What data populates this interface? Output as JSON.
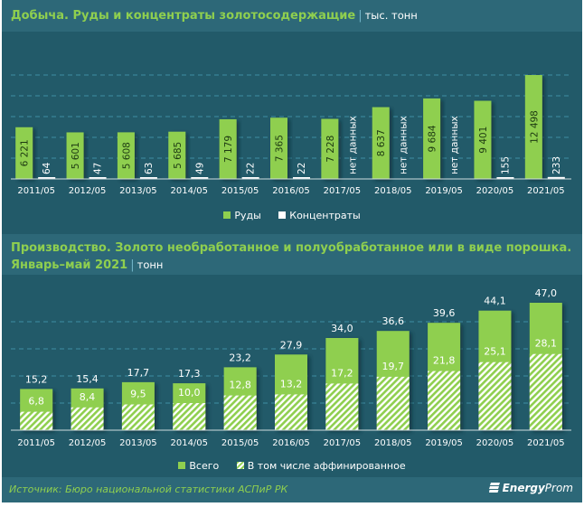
{
  "colors": {
    "green": "#8fcf4f",
    "white": "#ffffff",
    "background": "#225a69",
    "header_band": "#2d6878",
    "grid": "#3f8ea3"
  },
  "chart_data": [
    {
      "type": "bar",
      "title": "Добыча. Руды и концентраты золотосодержащие",
      "unit": "тыс. тонн",
      "categories": [
        "2011/05",
        "2012/05",
        "2013/05",
        "2014/05",
        "2015/05",
        "2016/05",
        "2017/05",
        "2018/05",
        "2019/05",
        "2020/05",
        "2021/05"
      ],
      "series": [
        {
          "name": "Руды",
          "color": "#8fcf4f",
          "values": [
            6221,
            5601,
            5608,
            5685,
            7179,
            7365,
            7228,
            8637,
            9684,
            9401,
            12498
          ],
          "labels": [
            "6 221",
            "5 601",
            "5 608",
            "5 685",
            "7 179",
            "7 365",
            "7 228",
            "8 637",
            "9 684",
            "9 401",
            "12 498"
          ]
        },
        {
          "name": "Концентраты",
          "color": "#ffffff",
          "values": [
            64,
            47,
            63,
            49,
            22,
            22,
            null,
            null,
            null,
            155,
            233
          ],
          "labels": [
            "64",
            "47",
            "63",
            "49",
            "22",
            "22",
            "нет данных",
            "нет данных",
            "нет данных",
            "155",
            "233"
          ]
        }
      ],
      "ylim": [
        0,
        15000
      ],
      "ytick_step": 2500,
      "grid": true,
      "legend": "bottom-center",
      "xlabel": "",
      "ylabel": ""
    },
    {
      "type": "bar",
      "title": "Производство. Золото необработанное и полуобработанное или в виде порошка.",
      "title_line2": "Январь–май 2021",
      "unit": "тонн",
      "categories": [
        "2011/05",
        "2012/05",
        "2013/05",
        "2014/05",
        "2015/05",
        "2016/05",
        "2017/05",
        "2018/05",
        "2019/05",
        "2020/05",
        "2021/05"
      ],
      "series": [
        {
          "name": "Всего",
          "color": "#8fcf4f",
          "values": [
            15.2,
            15.4,
            17.7,
            17.3,
            23.2,
            27.9,
            34.0,
            36.6,
            39.6,
            44.1,
            47.0
          ],
          "labels": [
            "15,2",
            "15,4",
            "17,7",
            "17,3",
            "23,2",
            "27,9",
            "34,0",
            "36,6",
            "39,6",
            "44,1",
            "47,0"
          ]
        },
        {
          "name": "В том числе аффинированное",
          "color": "#8fcf4f",
          "pattern": "hatched",
          "values": [
            6.8,
            8.4,
            9.5,
            10.0,
            12.8,
            13.2,
            17.2,
            19.7,
            21.8,
            25.1,
            28.1
          ],
          "labels": [
            "6,8",
            "8,4",
            "9,5",
            "10,0",
            "12,8",
            "13,2",
            "17,2",
            "19,7",
            "21,8",
            "25,1",
            "28,1"
          ]
        }
      ],
      "ylim": [
        0,
        50
      ],
      "ytick_step": 10,
      "grid": true,
      "legend": "bottom-center",
      "xlabel": "",
      "ylabel": ""
    }
  ],
  "footer": {
    "source": "Источник: Бюро национальной  статистики  АСПиР РК",
    "logo_bold": "Energy",
    "logo_rest": "Prom"
  }
}
